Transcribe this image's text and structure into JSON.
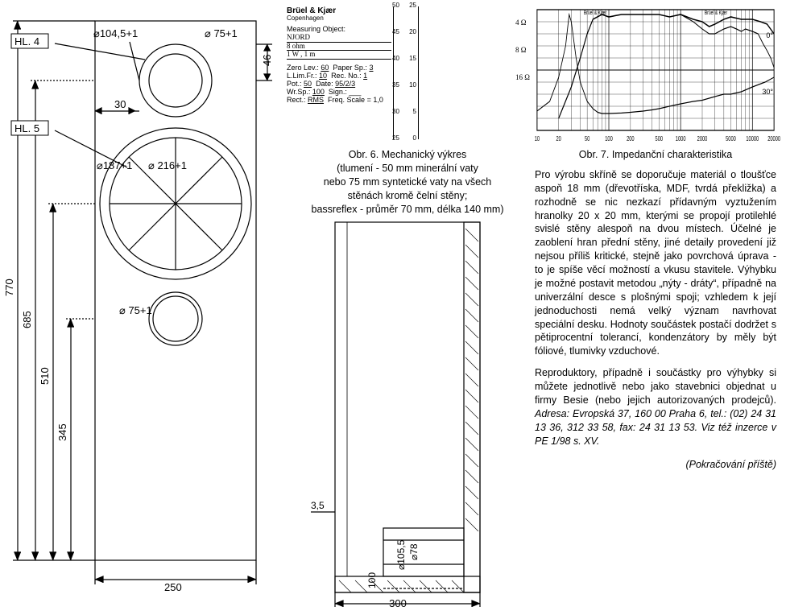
{
  "drawing_front": {
    "hl4": "HL. 4",
    "hl5": "HL. 5",
    "d_tweeter": "⌀104,5+1",
    "d_tweeter_hole": "⌀ 75+1",
    "d_woofer_rebate": "⌀187+1",
    "d_woofer_cut": "⌀ 216+1",
    "d_port": "⌀ 75+1",
    "dim_30": "30",
    "dim_46": "46",
    "dim_770": "770",
    "dim_685": "685",
    "dim_510": "510",
    "dim_345": "345",
    "dim_250": "250"
  },
  "drawing_side": {
    "dim_35": "3,5",
    "dim_100": "100",
    "d_1055": "⌀105,5",
    "d_78": "⌀78",
    "dim_300": "300"
  },
  "chart": {
    "bk_brand": "Brüel & Kjær",
    "bk_city": "Copenhagen",
    "bk_meas_obj": "Measuring Object:",
    "bk_njord": "NJORD",
    "bk_8ohm": "8 ohm",
    "bk_1w1m": "1 W , 1 m",
    "bk_zero": "Zero Lev.:",
    "bk_zero_v": "60",
    "bk_paper": "Paper Sp.:",
    "bk_paper_v": "3",
    "bk_llim": "L.Lim.Fr.:",
    "bk_llim_v": "10",
    "bk_rec": "Rec. No.:",
    "bk_rec_v": "1",
    "bk_pot": "Pot.:",
    "bk_pot_v": "50",
    "bk_date": "Date:",
    "bk_date_v": "95/2/3",
    "bk_wrsp": "Wr.Sp.:",
    "bk_wrsp_v": "100",
    "bk_sign": "Sign.:",
    "bk_rect": "Rect.:",
    "bk_rect_v": "RMS",
    "bk_freq": "Freq. Scale = 1,0",
    "y_left_outer": [
      "50",
      "45",
      "40",
      "35",
      "30",
      "25"
    ],
    "y_left_inner": [
      "25",
      "20",
      "15",
      "10",
      "5",
      "0"
    ],
    "x_ticks": [
      "10",
      "20",
      "50",
      "100",
      "200",
      "500",
      "1000",
      "2000",
      "5000",
      "10000",
      "20000"
    ],
    "curve_4ohm": "4 Ω",
    "curve_8ohm": "8 Ω",
    "curve_16ohm": "16 Ω",
    "deg0": "0°",
    "deg30": "30°",
    "impedance_points": [
      [
        10,
        8
      ],
      [
        15,
        12
      ],
      [
        20,
        22
      ],
      [
        25,
        35
      ],
      [
        28,
        48
      ],
      [
        30,
        45
      ],
      [
        35,
        30
      ],
      [
        40,
        20
      ],
      [
        50,
        12
      ],
      [
        60,
        9
      ],
      [
        70,
        7.5
      ],
      [
        80,
        7
      ],
      [
        100,
        7
      ],
      [
        150,
        7.2
      ],
      [
        200,
        7.5
      ],
      [
        300,
        8
      ],
      [
        400,
        8.5
      ],
      [
        500,
        9
      ],
      [
        700,
        10
      ],
      [
        1000,
        11
      ],
      [
        1500,
        12
      ],
      [
        2000,
        12.5
      ],
      [
        3000,
        14
      ],
      [
        4000,
        15
      ],
      [
        5000,
        15
      ],
      [
        7000,
        16
      ],
      [
        10000,
        18
      ],
      [
        15000,
        20
      ],
      [
        20000,
        22
      ]
    ],
    "spl0_points": [
      [
        20,
        5
      ],
      [
        30,
        18
      ],
      [
        40,
        30
      ],
      [
        50,
        40
      ],
      [
        60,
        46
      ],
      [
        80,
        48
      ],
      [
        100,
        47
      ],
      [
        150,
        48
      ],
      [
        200,
        48
      ],
      [
        300,
        48
      ],
      [
        400,
        48
      ],
      [
        500,
        48
      ],
      [
        700,
        47
      ],
      [
        1000,
        48
      ],
      [
        1500,
        46
      ],
      [
        2000,
        45
      ],
      [
        2500,
        43
      ],
      [
        3000,
        44
      ],
      [
        4000,
        46
      ],
      [
        5000,
        47
      ],
      [
        7000,
        46
      ],
      [
        10000,
        46
      ],
      [
        13000,
        45
      ],
      [
        16000,
        44
      ],
      [
        20000,
        40
      ]
    ],
    "spl30_points": [
      [
        1000,
        48
      ],
      [
        1500,
        45
      ],
      [
        2000,
        42
      ],
      [
        2500,
        40
      ],
      [
        3000,
        40
      ],
      [
        4000,
        42
      ],
      [
        5000,
        43
      ],
      [
        6000,
        42
      ],
      [
        7000,
        41
      ],
      [
        8000,
        42
      ],
      [
        10000,
        41
      ],
      [
        12000,
        40
      ],
      [
        14000,
        36
      ],
      [
        16000,
        33
      ],
      [
        18000,
        30
      ],
      [
        20000,
        26
      ]
    ],
    "grid_color": "#000000",
    "curve_color": "#000000",
    "bg_color": "#ffffff"
  },
  "captions": {
    "fig6_no": "Obr. 6.",
    "fig6_txt": "Mechanický výkres\n(tlumení - 50 mm minerální vaty\nnebo 75 mm syntetické vaty na všech\nstěnách kromě čelní stěny;\nbassreflex - průměr 70 mm, délka 140 mm)",
    "fig7_no": "Obr. 7.",
    "fig7_txt": "Impedanční charakteristika"
  },
  "text": {
    "p1": "Pro výrobu skříně se doporučuje materiál o tloušťce aspoň 18 mm (dřevotříska, MDF, tvrdá překližka) a rozhodně se nic nezkazí přídavným vyztužením hranolky 20 x 20 mm, kterými se propojí protilehlé svislé stěny alespoň na dvou místech. Účelné je zaoblení hran přední stěny, jiné detaily provedení již nejsou příliš kritické, stejně jako povrchová úprava - to je spíše věcí možností a vkusu stavitele. Výhybku je možné postavit metodou „nýty - dráty“, případně na univerzální desce s plošnými spoji; vzhledem k její jednoduchosti nemá velký význam navrhovat speciální desku. Hodnoty součástek postačí dodržet s pětiprocentní tolerancí, kondenzátory by měly být fóliové, tlumivky vzduchové.",
    "p2a": "Reproduktory, případně i součástky pro výhybky si můžete jednotlivě nebo jako stavebnici objednat u firmy Besie (nebo jejich autorizovaných prodejců). ",
    "p2b": "Adresa: Evropská 37, 160 00 Praha 6, tel.: (02) 24 31 13 36, 312 33 58, fax: 24 31 13 53. Viz též inzerce v PE 1/98 s. XV.",
    "cont": "(Pokračování příště)"
  }
}
